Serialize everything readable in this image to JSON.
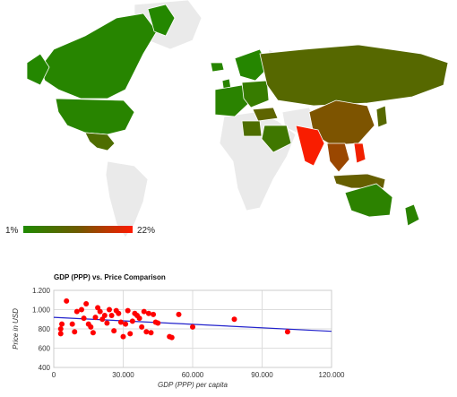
{
  "map": {
    "legend_min": "1%",
    "legend_max": "22%",
    "scale_colors": {
      "low": "#1f8a00",
      "high": "#ff1a00"
    },
    "no_data_color": "#eaeaea",
    "regions": [
      {
        "name": "Canada",
        "value": 0.05
      },
      {
        "name": "Alaska",
        "value": 0.03
      },
      {
        "name": "Greenland",
        "value": 0.03
      },
      {
        "name": "United States",
        "value": 0.06
      },
      {
        "name": "Mexico",
        "value": 0.3
      },
      {
        "name": "Iceland",
        "value": 0.05
      },
      {
        "name": "United Kingdom",
        "value": 0.06
      },
      {
        "name": "Scandinavia",
        "value": 0.04
      },
      {
        "name": "Western Europe",
        "value": 0.07
      },
      {
        "name": "Eastern Europe",
        "value": 0.15
      },
      {
        "name": "Russia",
        "value": 0.35
      },
      {
        "name": "Turkey",
        "value": 0.4
      },
      {
        "name": "Saudi Arabia",
        "value": 0.2
      },
      {
        "name": "Egypt",
        "value": 0.3
      },
      {
        "name": "China",
        "value": 0.55
      },
      {
        "name": "India",
        "value": 0.98
      },
      {
        "name": "Southeast Asia",
        "value": 0.65
      },
      {
        "name": "Philippines",
        "value": 0.95
      },
      {
        "name": "Japan",
        "value": 0.35
      },
      {
        "name": "Indonesia",
        "value": 0.45
      },
      {
        "name": "Australia",
        "value": 0.08
      },
      {
        "name": "New Zealand",
        "value": 0.07
      }
    ]
  },
  "chart_data": {
    "type": "scatter",
    "title": "GDP (PPP) vs. Price Comparison",
    "xlabel": "GDP (PPP) per capita",
    "ylabel": "Price in USD",
    "xlim": [
      0,
      120000
    ],
    "ylim": [
      400,
      1200
    ],
    "x_ticks": [
      "0",
      "30.000",
      "60.000",
      "90.000",
      "120.000"
    ],
    "y_ticks": [
      "400",
      "600",
      "800",
      "1.000",
      "1.200"
    ],
    "grid": true,
    "point_color": "#ff0000",
    "trend_color": "#2222cc",
    "trendline": [
      [
        0,
        920
      ],
      [
        120000,
        775
      ]
    ],
    "points": [
      [
        3000,
        800
      ],
      [
        3500,
        850
      ],
      [
        3000,
        750
      ],
      [
        5500,
        1090
      ],
      [
        8000,
        850
      ],
      [
        9000,
        770
      ],
      [
        10000,
        980
      ],
      [
        12000,
        1000
      ],
      [
        13000,
        910
      ],
      [
        14000,
        1060
      ],
      [
        15000,
        850
      ],
      [
        16000,
        820
      ],
      [
        17000,
        760
      ],
      [
        18000,
        920
      ],
      [
        19000,
        1020
      ],
      [
        20000,
        980
      ],
      [
        21000,
        900
      ],
      [
        22000,
        940
      ],
      [
        23000,
        860
      ],
      [
        24000,
        1000
      ],
      [
        25000,
        940
      ],
      [
        26000,
        780
      ],
      [
        27000,
        990
      ],
      [
        28000,
        960
      ],
      [
        29000,
        870
      ],
      [
        30000,
        720
      ],
      [
        31000,
        850
      ],
      [
        32000,
        990
      ],
      [
        33000,
        750
      ],
      [
        34000,
        880
      ],
      [
        35000,
        960
      ],
      [
        36000,
        940
      ],
      [
        37000,
        910
      ],
      [
        38000,
        820
      ],
      [
        39000,
        980
      ],
      [
        40000,
        770
      ],
      [
        41000,
        960
      ],
      [
        42000,
        760
      ],
      [
        43000,
        950
      ],
      [
        44000,
        870
      ],
      [
        45000,
        860
      ],
      [
        50000,
        720
      ],
      [
        51000,
        710
      ],
      [
        54000,
        950
      ],
      [
        60000,
        820
      ],
      [
        78000,
        900
      ],
      [
        101000,
        770
      ]
    ]
  }
}
